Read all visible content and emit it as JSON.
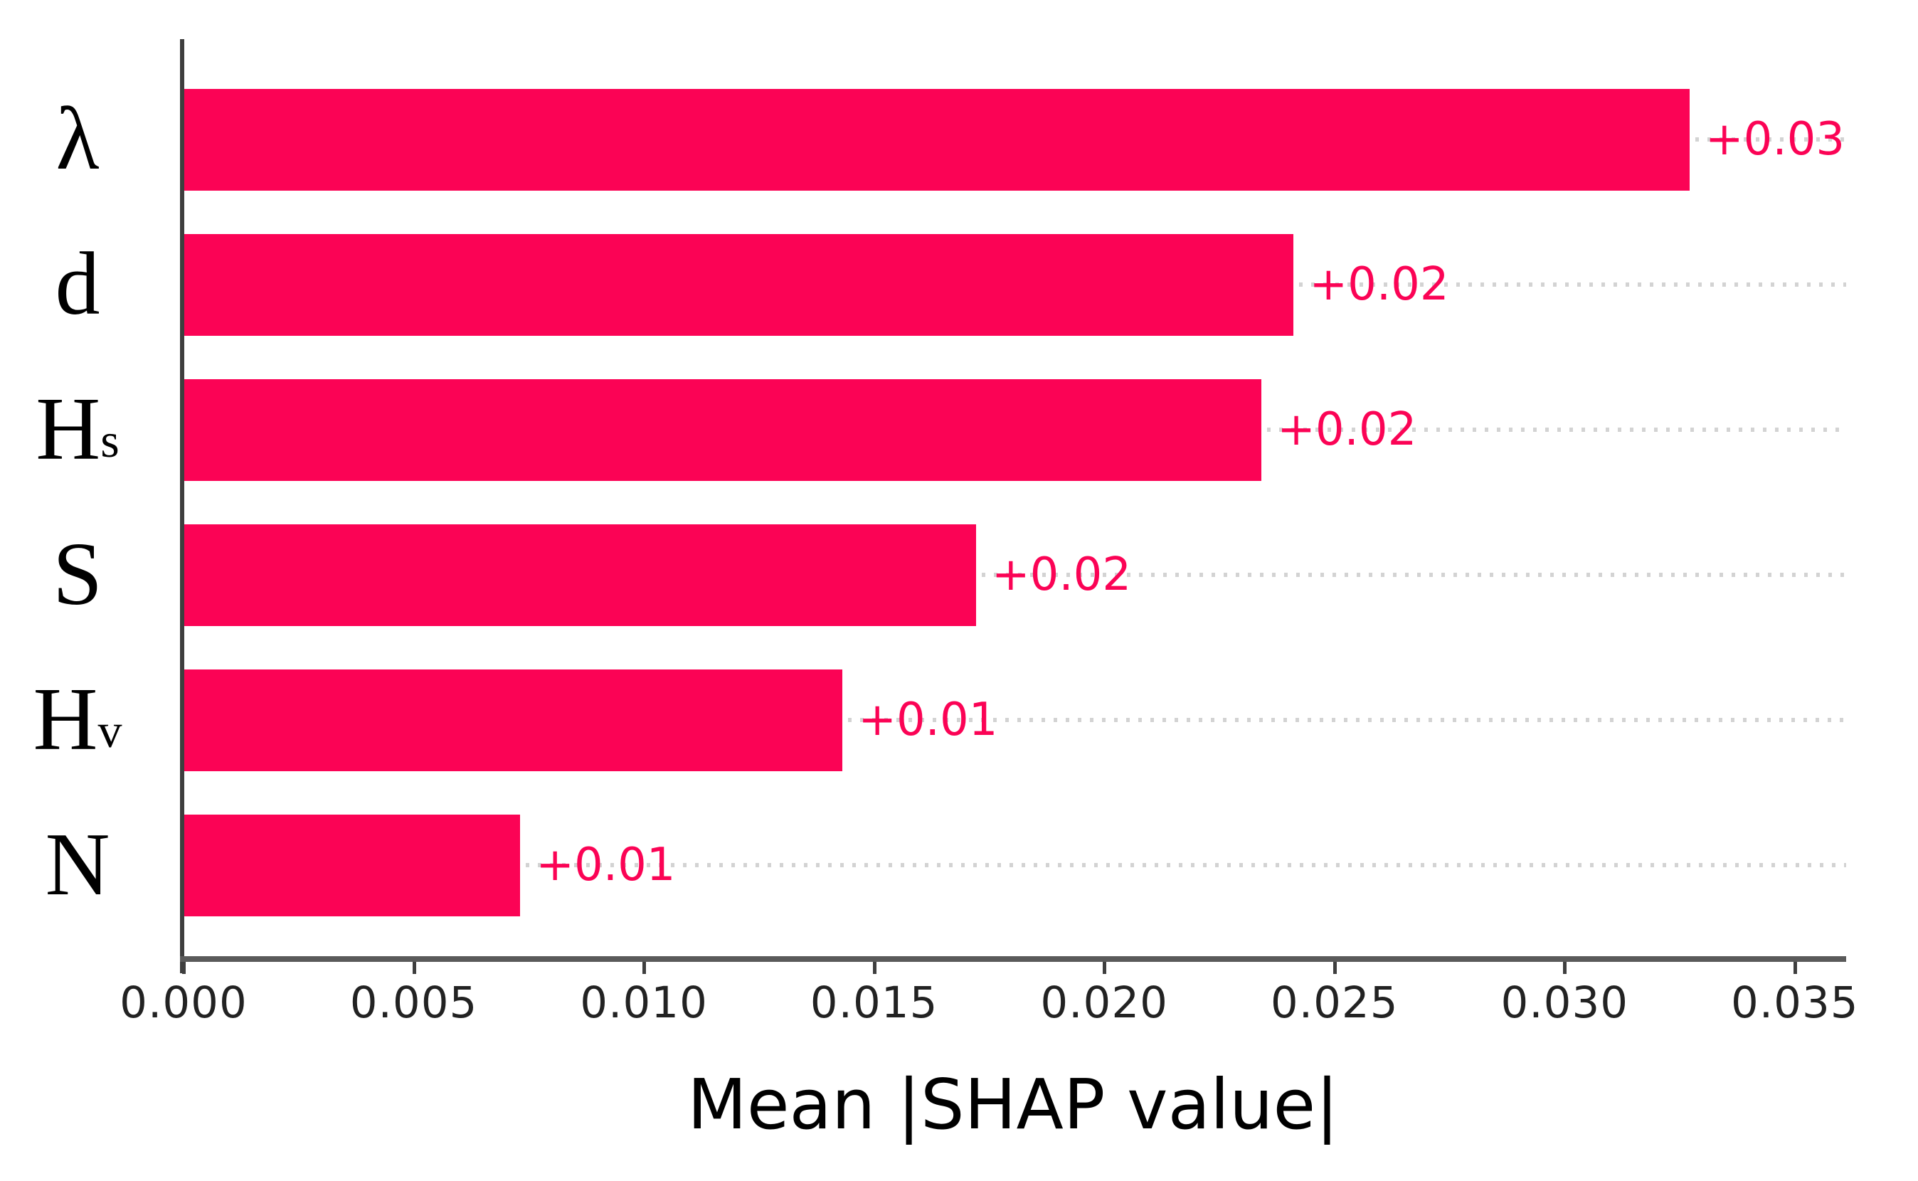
{
  "chart_data": {
    "type": "bar",
    "orientation": "horizontal",
    "title": "",
    "xlabel": "Mean |SHAP value|",
    "ylabel": "",
    "categories": [
      "λ",
      "d",
      "Hs",
      "S",
      "Hv",
      "N"
    ],
    "categories_rich": [
      {
        "main": "λ",
        "sub": ""
      },
      {
        "main": "d",
        "sub": ""
      },
      {
        "main": "H",
        "sub": "s"
      },
      {
        "main": "S",
        "sub": ""
      },
      {
        "main": "H",
        "sub": "v"
      },
      {
        "main": "N",
        "sub": ""
      }
    ],
    "values": [
      0.0327,
      0.0241,
      0.0234,
      0.0172,
      0.0143,
      0.0073
    ],
    "bar_labels": [
      "+0.03",
      "+0.02",
      "+0.02",
      "+0.02",
      "+0.01",
      "+0.01"
    ],
    "xticks": [
      "0.000",
      "0.005",
      "0.010",
      "0.015",
      "0.020",
      "0.025",
      "0.030",
      "0.035"
    ],
    "xtick_values": [
      0.0,
      0.005,
      0.01,
      0.015,
      0.02,
      0.025,
      0.03,
      0.035
    ],
    "xlim": [
      0,
      0.0361
    ],
    "grid": "dotted horizontal leader lines per bar row, right of bar",
    "legend_position": "none",
    "colors": {
      "bar": "#fb0355",
      "value_label": "#fb0355",
      "leader_dots": "#d3d3d3",
      "x_axis_line": "#5a5a5a",
      "y_axis_line": "#3e3e3e",
      "tick_label": "#222222",
      "axis_title": "#000000",
      "background": "#ffffff"
    }
  }
}
